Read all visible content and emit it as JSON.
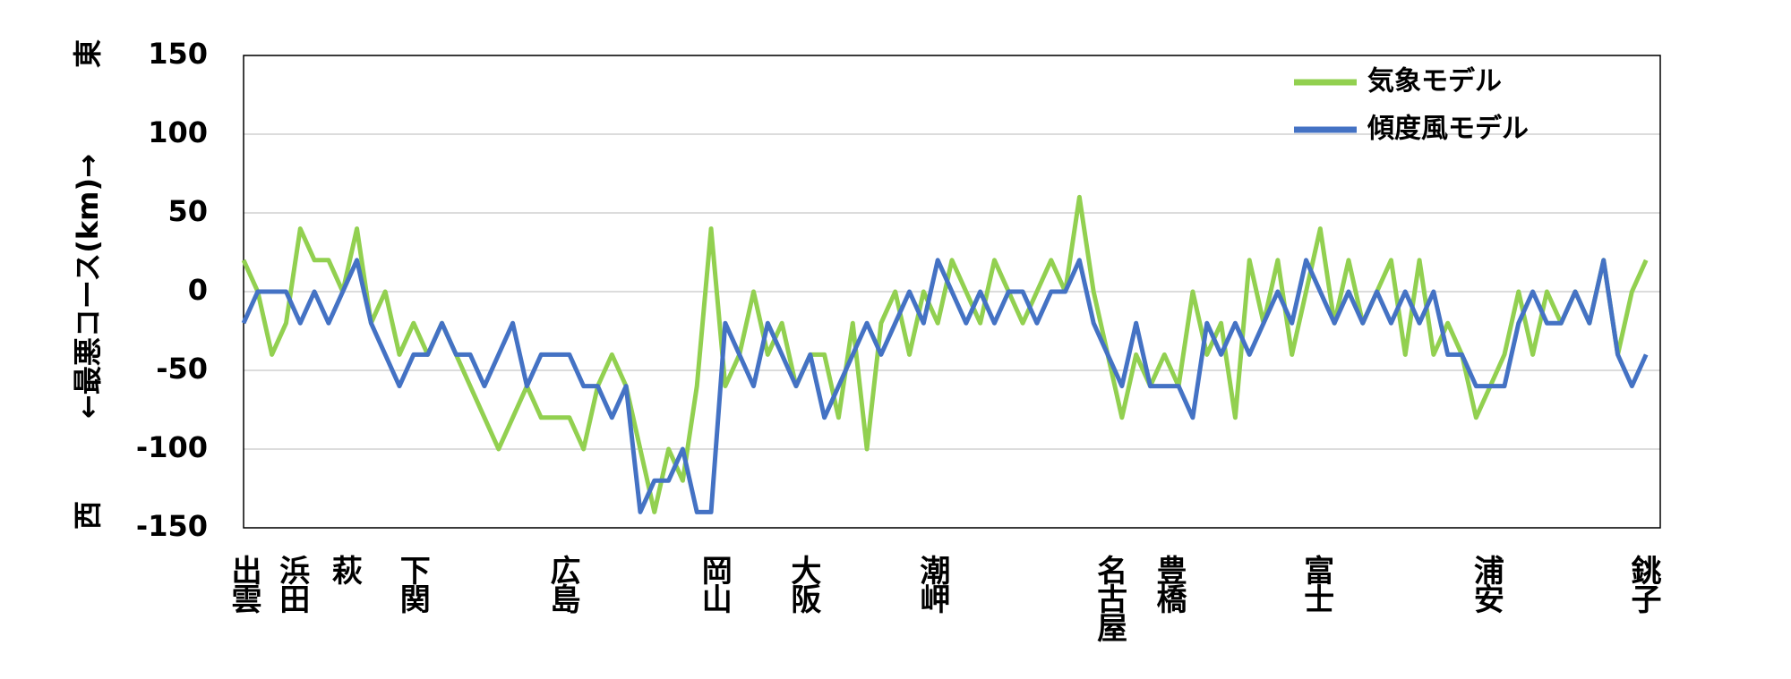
{
  "chart_data": {
    "type": "line",
    "y_axis_label": "←最悪コース(km)→",
    "y_top_label": "東",
    "y_bottom_label": "西",
    "x": [
      0,
      1,
      2,
      3,
      4,
      5,
      6,
      7,
      8,
      9,
      10,
      11,
      12,
      13,
      14,
      15,
      16,
      17,
      18,
      19,
      20,
      21,
      22,
      23,
      24,
      25,
      26,
      27,
      28,
      29,
      30,
      31,
      32,
      33,
      34,
      35,
      36,
      37,
      38,
      39,
      40,
      41,
      42,
      43,
      44,
      45,
      46,
      47,
      48,
      49,
      50,
      51,
      52,
      53,
      54,
      55,
      56,
      57,
      58,
      59,
      60,
      61,
      62,
      63,
      64,
      65,
      66,
      67,
      68,
      69,
      70,
      71,
      72,
      73,
      74,
      75,
      76,
      77,
      78,
      79,
      80,
      81,
      82,
      83,
      84,
      85,
      86,
      87,
      88,
      89,
      90,
      91,
      92,
      93,
      94,
      95,
      96,
      97,
      98,
      99
    ],
    "series": [
      {
        "name": "気象モデル",
        "color": "#92d050",
        "values": [
          20,
          0,
          -40,
          -20,
          40,
          20,
          20,
          0,
          40,
          -20,
          0,
          -40,
          -20,
          -40,
          -20,
          -40,
          -60,
          -80,
          -100,
          -80,
          -60,
          -80,
          -80,
          -80,
          -100,
          -60,
          -40,
          -60,
          -100,
          -140,
          -100,
          -120,
          -60,
          40,
          -60,
          -40,
          0,
          -40,
          -20,
          -60,
          -40,
          -40,
          -80,
          -20,
          -100,
          -20,
          0,
          -40,
          0,
          -20,
          20,
          0,
          -20,
          20,
          0,
          -20,
          0,
          20,
          0,
          60,
          0,
          -40,
          -80,
          -40,
          -60,
          -40,
          -60,
          0,
          -40,
          -20,
          -80,
          20,
          -20,
          20,
          -40,
          0,
          40,
          -20,
          20,
          -20,
          0,
          20,
          -40,
          20,
          -40,
          -20,
          -40,
          -80,
          -60,
          -40,
          0,
          -40,
          0,
          -20,
          0,
          -20,
          20,
          -40,
          0,
          20
        ]
      },
      {
        "name": "傾度風モデル",
        "color": "#4472c4",
        "values": [
          -20,
          0,
          0,
          0,
          -20,
          0,
          -20,
          0,
          20,
          -20,
          -40,
          -60,
          -40,
          -40,
          -20,
          -40,
          -40,
          -60,
          -40,
          -20,
          -60,
          -40,
          -40,
          -40,
          -60,
          -60,
          -80,
          -60,
          -140,
          -120,
          -120,
          -100,
          -140,
          -140,
          -20,
          -40,
          -60,
          -20,
          -40,
          -60,
          -40,
          -80,
          -60,
          -40,
          -20,
          -40,
          -20,
          0,
          -20,
          20,
          0,
          -20,
          0,
          -20,
          0,
          0,
          -20,
          0,
          0,
          20,
          -20,
          -40,
          -60,
          -20,
          -60,
          -60,
          -60,
          -80,
          -20,
          -40,
          -20,
          -40,
          -20,
          0,
          -20,
          20,
          0,
          -20,
          0,
          -20,
          0,
          -20,
          0,
          -20,
          0,
          -40,
          -40,
          -60,
          -60,
          -60,
          -20,
          0,
          -20,
          -20,
          0,
          -20,
          20,
          -40,
          -60,
          -40
        ]
      }
    ],
    "xlim": [
      0,
      100
    ],
    "xticks": [
      {
        "value": 0,
        "label": "出雲"
      },
      {
        "value": 3.4,
        "label": "浜田"
      },
      {
        "value": 7.1,
        "label": "萩"
      },
      {
        "value": 11.9,
        "label": "下関"
      },
      {
        "value": 22.5,
        "label": "広島"
      },
      {
        "value": 33.2,
        "label": "岡山"
      },
      {
        "value": 39.5,
        "label": "大阪"
      },
      {
        "value": 48.6,
        "label": "潮岬"
      },
      {
        "value": 61.1,
        "label": "名古屋"
      },
      {
        "value": 65.3,
        "label": "豊橋"
      },
      {
        "value": 75.7,
        "label": "富士"
      },
      {
        "value": 87.7,
        "label": "浦安"
      },
      {
        "value": 98.8,
        "label": "銚子"
      }
    ],
    "ylim": [
      -150,
      150
    ],
    "yticks": [
      -150,
      -100,
      -50,
      0,
      50,
      100,
      150
    ],
    "grid": true,
    "legend": "top-right"
  }
}
